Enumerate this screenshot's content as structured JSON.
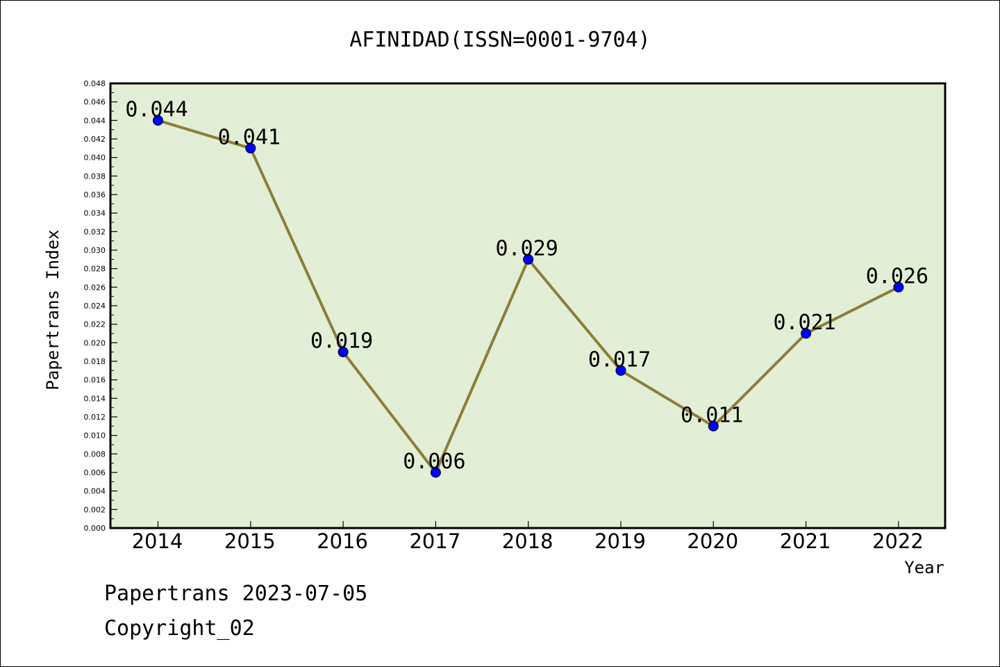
{
  "chart_data": {
    "type": "line",
    "title": "AFINIDAD(ISSN=0001-9704)",
    "xlabel": "Year",
    "ylabel": "Papertrans Index",
    "categories": [
      "2014",
      "2015",
      "2016",
      "2017",
      "2018",
      "2019",
      "2020",
      "2021",
      "2022"
    ],
    "series": [
      {
        "values": [
          0.044,
          0.041,
          0.019,
          0.006,
          0.029,
          0.017,
          0.011,
          0.021,
          0.026
        ],
        "data_labels": [
          "0.044",
          "0.041",
          "0.019",
          "0.006",
          "0.029",
          "0.017",
          "0.011",
          "0.021",
          "0.026"
        ]
      }
    ],
    "ylim": [
      0,
      0.048
    ],
    "yticks": [
      "0.000",
      "0.002",
      "0.004",
      "0.006",
      "0.008",
      "0.010",
      "0.012",
      "0.014",
      "0.016",
      "0.018",
      "0.020",
      "0.022",
      "0.024",
      "0.026",
      "0.028",
      "0.030",
      "0.032",
      "0.034",
      "0.036",
      "0.038",
      "0.040",
      "0.042",
      "0.044",
      "0.046",
      "0.048"
    ],
    "grid": false,
    "colors": {
      "line": "#8B7D3A",
      "marker": "#0000FF",
      "plot_bg": "#E2EFD6"
    }
  },
  "footer": {
    "line1": "Papertrans 2023-07-05",
    "line2": "Copyright_02"
  }
}
